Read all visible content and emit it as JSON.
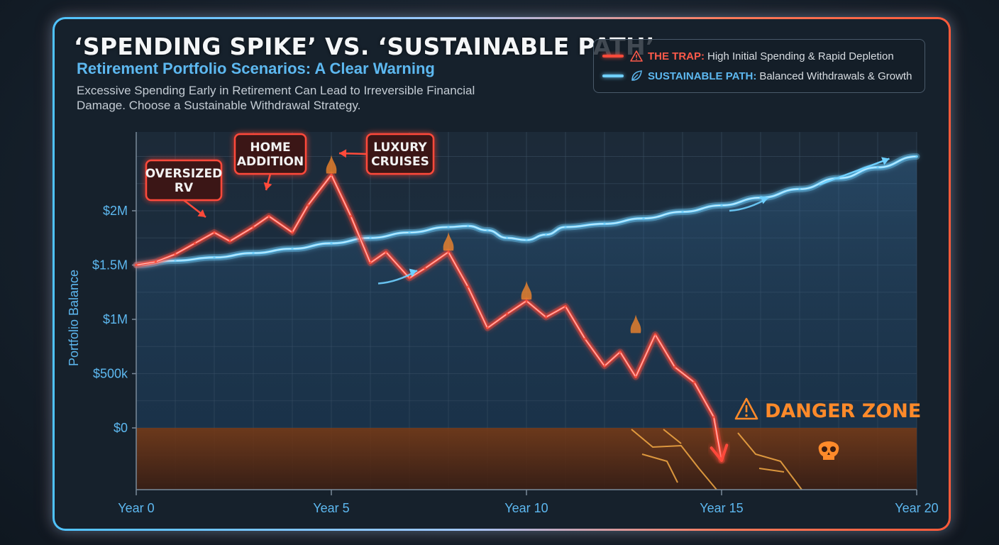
{
  "header": {
    "title": "‘SPENDING SPIKE’ VS. ‘SUSTAINABLE PATH’",
    "subtitle": "Retirement Portfolio Scenarios: A Clear Warning",
    "description": "Excessive Spending Early in Retirement Can Lead to Irreversible Financial Damage. Choose a Sustainable Withdrawal Strategy."
  },
  "legend": {
    "trap_key": "THE TRAP:",
    "trap_text": "High Initial Spending & Rapid Depletion",
    "sustainable_key": "SUSTAINABLE PATH:",
    "sustainable_text": "Balanced Withdrawals & Growth"
  },
  "colors": {
    "trap": "#ff4a3a",
    "sustainable": "#6fd0ff",
    "danger": "#ff8a2a",
    "axis_label": "#5db8f0",
    "grid": "#3e5266"
  },
  "annotations": [
    {
      "text": "OVERSIZED\nRV",
      "x": 2,
      "y": 1.85
    },
    {
      "text": "HOME\nADDITION",
      "x": 3.4,
      "y": 2.05
    },
    {
      "text": "LUXURY\nCRUISES",
      "x": 5.1,
      "y": 2.35
    }
  ],
  "danger_zone": {
    "label": "DANGER ZONE",
    "icon": "skull-icon"
  },
  "chart_data": {
    "type": "line",
    "ylabel": "Portfolio Balance",
    "xlim": [
      0,
      20
    ],
    "x_ticks": [
      0,
      5,
      10,
      15,
      20
    ],
    "x_tick_labels": [
      "Year 0",
      "Year 5",
      "Year 10",
      "Year 15",
      "Year 20"
    ],
    "y_ticks": [
      0,
      500000,
      1000000,
      1500000,
      2000000
    ],
    "y_tick_labels": [
      "$0",
      "$500k",
      "$1M",
      "$1.5M",
      "$2M"
    ],
    "grid": true,
    "legend_position": "top-right",
    "series": [
      {
        "name": "THE TRAP",
        "x": [
          0,
          0.5,
          1,
          1.5,
          2,
          2.4,
          3,
          3.4,
          4,
          4.4,
          5,
          5.5,
          6,
          6.4,
          7,
          7.4,
          8,
          8.5,
          9,
          9.5,
          10,
          10.5,
          11,
          11.5,
          12,
          12.4,
          12.8,
          13.3,
          13.8,
          14.3,
          14.8,
          15
        ],
        "y": [
          1500000,
          1530000,
          1600000,
          1700000,
          1800000,
          1720000,
          1850000,
          1950000,
          1800000,
          2050000,
          2330000,
          1950000,
          1520000,
          1620000,
          1380000,
          1470000,
          1620000,
          1300000,
          920000,
          1050000,
          1170000,
          1020000,
          1120000,
          820000,
          570000,
          700000,
          470000,
          860000,
          560000,
          420000,
          100000,
          -300000
        ]
      },
      {
        "name": "SUSTAINABLE PATH",
        "x": [
          0,
          1,
          2,
          3,
          4,
          5,
          6,
          7,
          8,
          8.5,
          9,
          9.5,
          10,
          10.5,
          11,
          12,
          13,
          14,
          15,
          16,
          17,
          18,
          19,
          20
        ],
        "y": [
          1500000,
          1540000,
          1570000,
          1610000,
          1650000,
          1700000,
          1750000,
          1800000,
          1850000,
          1860000,
          1820000,
          1750000,
          1730000,
          1780000,
          1850000,
          1880000,
          1930000,
          1990000,
          2050000,
          2120000,
          2200000,
          2300000,
          2400000,
          2500000
        ]
      }
    ]
  }
}
